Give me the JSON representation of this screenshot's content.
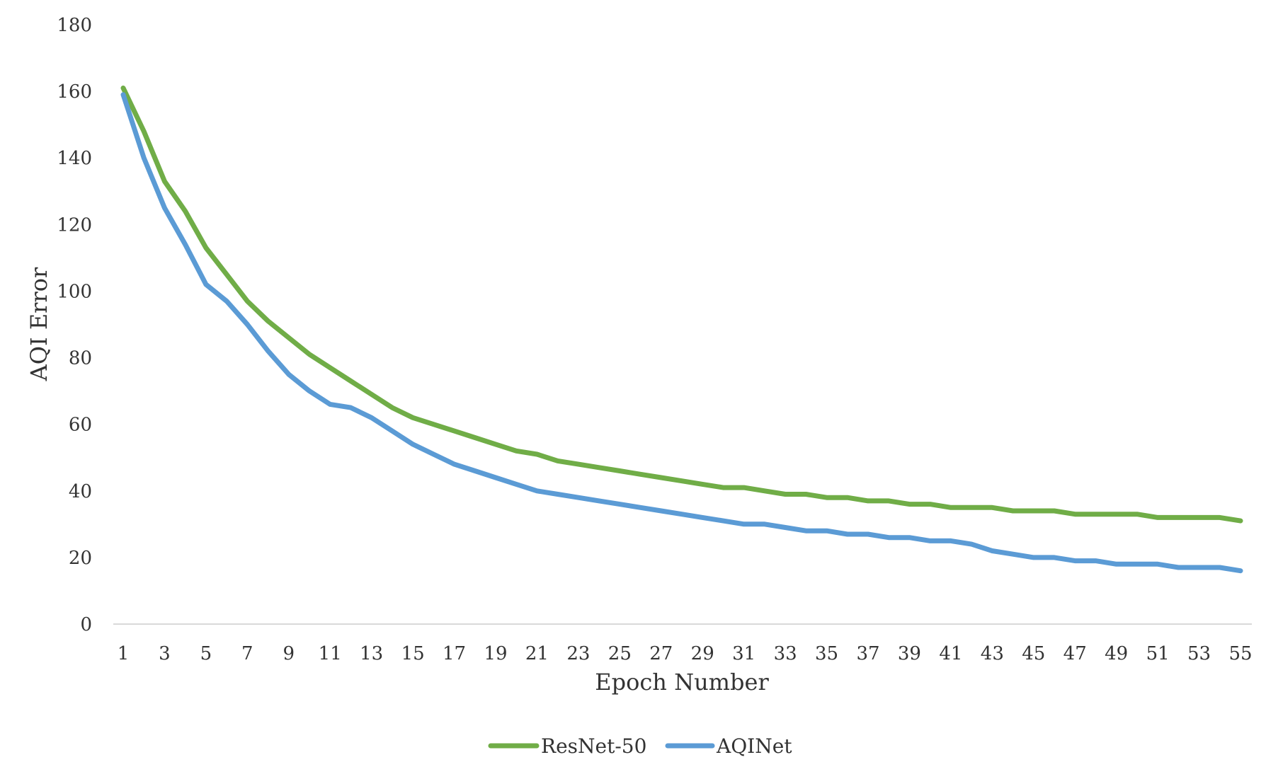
{
  "chart_data": {
    "type": "line",
    "xlabel": "Epoch Number",
    "ylabel": "AQI Error",
    "ylim": [
      0,
      180
    ],
    "yticks": [
      "0",
      "20",
      "40",
      "60",
      "80",
      "100",
      "120",
      "140",
      "160",
      "180"
    ],
    "xticks": [
      "1",
      "3",
      "5",
      "7",
      "9",
      "11",
      "13",
      "15",
      "17",
      "19",
      "21",
      "23",
      "25",
      "27",
      "29",
      "31",
      "33",
      "35",
      "37",
      "39",
      "41",
      "43",
      "45",
      "47",
      "49",
      "51",
      "53",
      "55"
    ],
    "x": [
      1,
      2,
      3,
      4,
      5,
      6,
      7,
      8,
      9,
      10,
      11,
      12,
      13,
      14,
      15,
      16,
      17,
      18,
      19,
      20,
      21,
      22,
      23,
      24,
      25,
      26,
      27,
      28,
      29,
      30,
      31,
      32,
      33,
      34,
      35,
      36,
      37,
      38,
      39,
      40,
      41,
      42,
      43,
      44,
      45,
      46,
      47,
      48,
      49,
      50,
      51,
      52,
      53,
      54,
      55
    ],
    "grid": false,
    "legend_position": "bottom",
    "series": [
      {
        "name": "ResNet-50",
        "color": "#70AD47",
        "values": [
          161,
          148,
          133,
          124,
          113,
          105,
          97,
          91,
          86,
          81,
          77,
          73,
          69,
          65,
          62,
          60,
          58,
          56,
          54,
          52,
          51,
          49,
          48,
          47,
          46,
          45,
          44,
          43,
          42,
          41,
          41,
          40,
          39,
          39,
          38,
          38,
          37,
          37,
          36,
          36,
          35,
          35,
          35,
          34,
          34,
          34,
          33,
          33,
          33,
          33,
          32,
          32,
          32,
          32,
          31
        ]
      },
      {
        "name": "AQINet",
        "color": "#5B9BD5",
        "values": [
          159,
          140,
          125,
          114,
          102,
          97,
          90,
          82,
          75,
          70,
          66,
          65,
          62,
          58,
          54,
          51,
          48,
          46,
          44,
          42,
          40,
          39,
          38,
          37,
          36,
          35,
          34,
          33,
          32,
          31,
          30,
          30,
          29,
          28,
          28,
          27,
          27,
          26,
          26,
          25,
          25,
          24,
          22,
          21,
          20,
          20,
          19,
          19,
          18,
          18,
          18,
          17,
          17,
          17,
          16
        ]
      }
    ]
  }
}
